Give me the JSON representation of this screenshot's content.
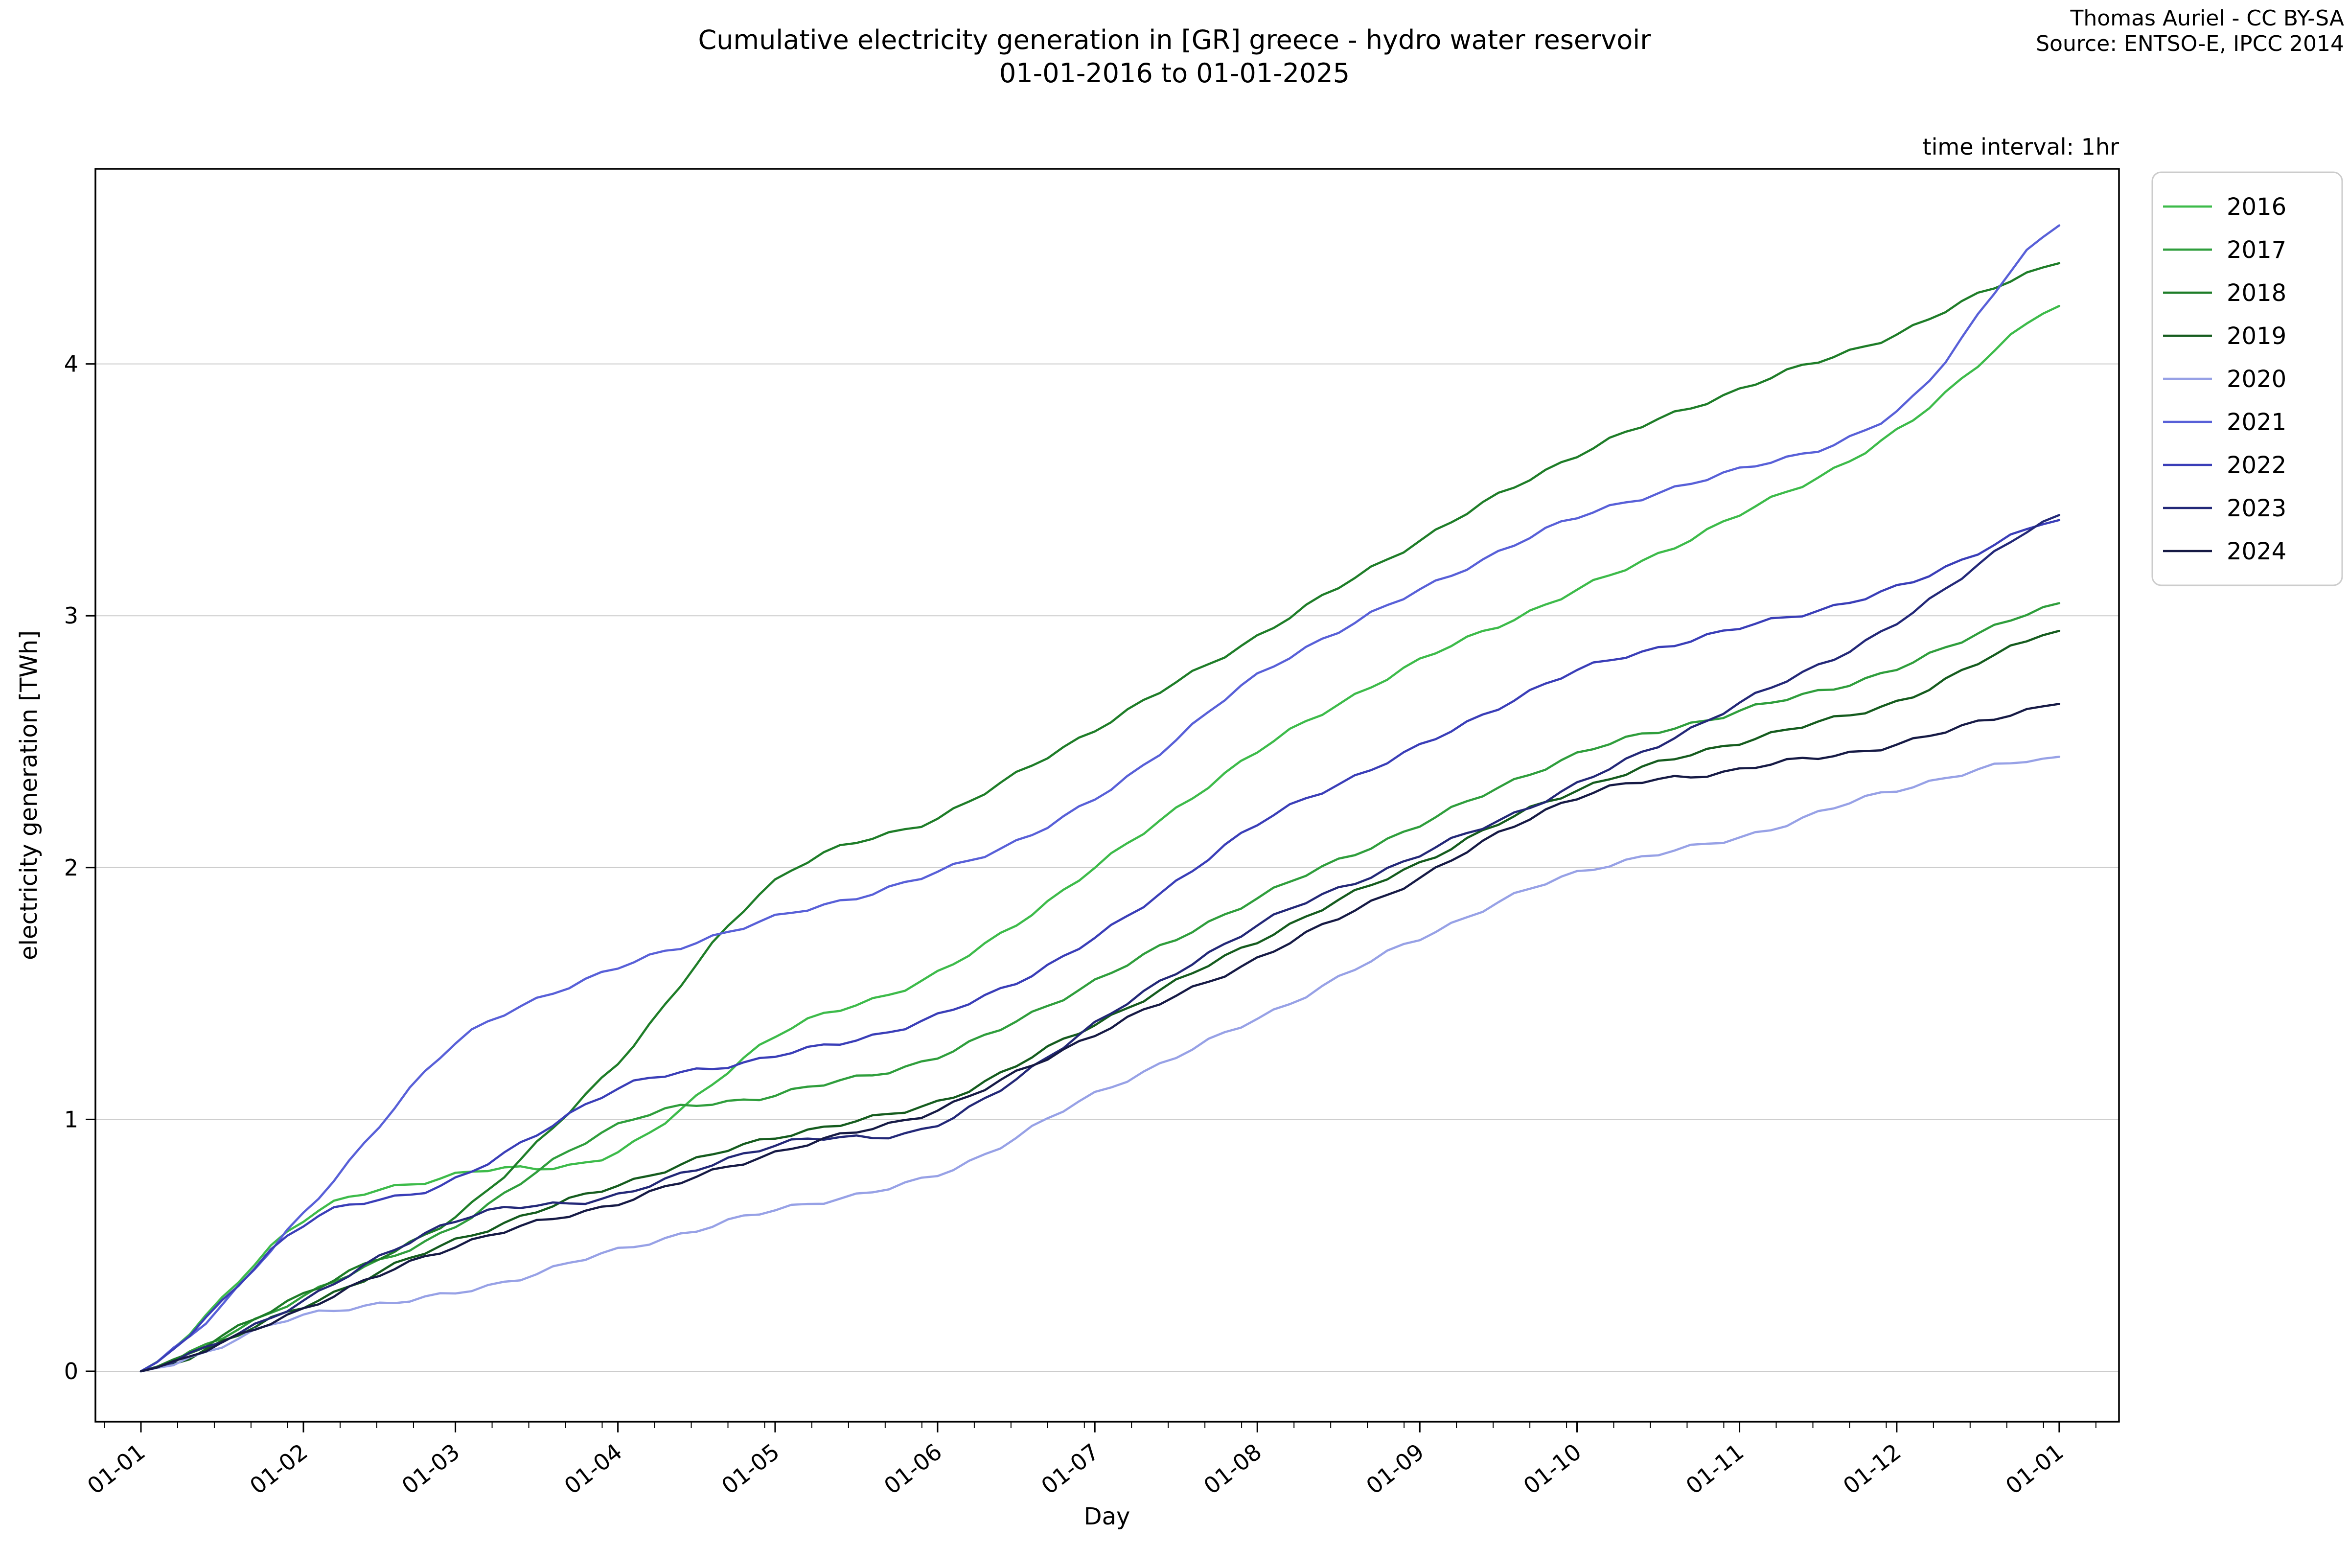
{
  "title": {
    "line1": "Cumulative electricity generation in [GR] greece - hydro water reservoir",
    "line2": "01-01-2016 to 01-01-2025"
  },
  "attribution": {
    "line1": "Thomas Auriel - CC BY-SA",
    "line2": "Source: ENTSO-E, IPCC 2014"
  },
  "annotation": "time interval: 1hr",
  "chart_data": {
    "type": "line",
    "title": "Cumulative electricity generation in [GR] greece - hydro water reservoir 01-01-2016 to 01-01-2025",
    "xlabel": "Day",
    "ylabel": "electricity generation [TWh]",
    "legend_position": "upper right outside",
    "grid": "horizontal",
    "grid_color": "#cccccc",
    "ylim": [
      -0.2,
      4.78
    ],
    "xlim_days": [
      -8.7,
      377.5
    ],
    "y_ticks": [
      0,
      1,
      2,
      3,
      4
    ],
    "x_tick_labels": [
      "01-01",
      "01-02",
      "01-03",
      "01-04",
      "01-05",
      "01-06",
      "01-07",
      "01-08",
      "01-09",
      "01-10",
      "01-11",
      "01-12",
      "01-01"
    ],
    "x_tick_days": [
      0,
      31,
      60,
      91,
      121,
      152,
      182,
      213,
      244,
      274,
      305,
      335,
      366
    ],
    "x_units": "day of year, hourly cumulative data",
    "series": [
      {
        "name": "2016",
        "color": "#3dbb4a",
        "values": [
          0,
          0.6,
          0.78,
          0.87,
          1.33,
          1.58,
          2.0,
          2.46,
          2.82,
          3.1,
          3.4,
          3.73,
          4.23
        ]
      },
      {
        "name": "2017",
        "color": "#2f9e3c",
        "values": [
          0,
          0.3,
          0.58,
          0.98,
          1.1,
          1.25,
          1.55,
          1.88,
          2.17,
          2.45,
          2.62,
          2.79,
          3.05
        ]
      },
      {
        "name": "2018",
        "color": "#1e7d28",
        "values": [
          0,
          0.31,
          0.62,
          1.23,
          1.95,
          2.2,
          2.55,
          2.92,
          3.3,
          3.64,
          3.9,
          4.12,
          4.4
        ]
      },
      {
        "name": "2019",
        "color": "#155c1e",
        "values": [
          0,
          0.26,
          0.52,
          0.74,
          0.93,
          1.07,
          1.38,
          1.71,
          2.02,
          2.31,
          2.5,
          2.66,
          2.94
        ]
      },
      {
        "name": "2020",
        "color": "#97a1e6",
        "values": [
          0,
          0.22,
          0.31,
          0.48,
          0.64,
          0.78,
          1.1,
          1.4,
          1.72,
          1.98,
          2.12,
          2.31,
          2.44
        ]
      },
      {
        "name": "2021",
        "color": "#5860d8",
        "values": [
          0,
          0.62,
          1.3,
          1.6,
          1.8,
          1.98,
          2.27,
          2.76,
          3.1,
          3.39,
          3.58,
          3.81,
          4.55
        ]
      },
      {
        "name": "2022",
        "color": "#3a3eb8",
        "values": [
          0,
          0.58,
          0.76,
          1.12,
          1.25,
          1.41,
          1.72,
          2.17,
          2.48,
          2.78,
          2.95,
          3.11,
          3.38
        ]
      },
      {
        "name": "2023",
        "color": "#232878",
        "values": [
          0,
          0.28,
          0.6,
          0.7,
          0.9,
          0.98,
          1.38,
          1.77,
          2.05,
          2.33,
          2.65,
          2.97,
          3.4
        ]
      },
      {
        "name": "2024",
        "color": "#161a45",
        "values": [
          0,
          0.25,
          0.5,
          0.67,
          0.87,
          1.04,
          1.34,
          1.64,
          1.96,
          2.28,
          2.39,
          2.49,
          2.65
        ]
      }
    ]
  }
}
